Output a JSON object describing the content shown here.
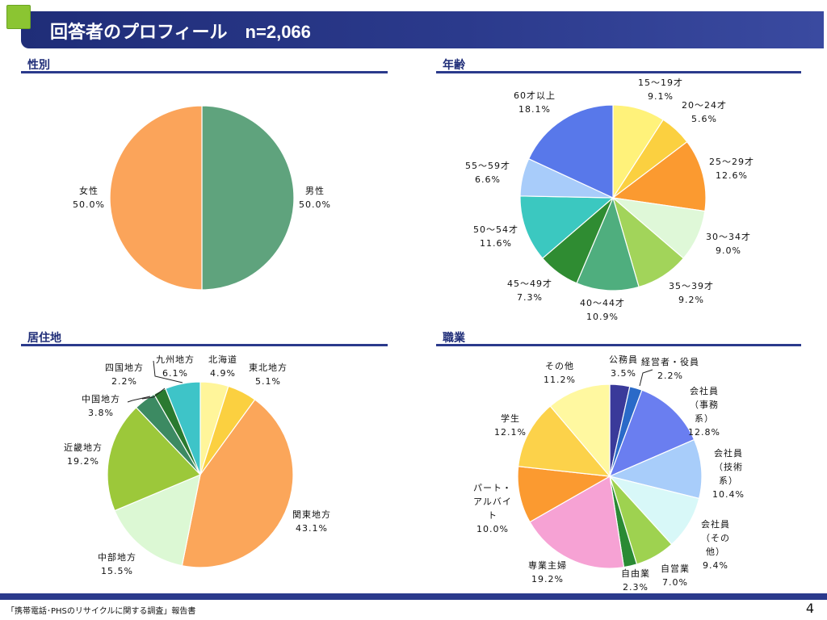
{
  "page": {
    "title": "回答者のプロフィール　n=2,066",
    "footer": "「携帯電話･PHSのリサイクルに関する調査」報告書",
    "page_number": "4"
  },
  "chart_data": [
    {
      "id": "gender",
      "type": "pie",
      "title": "性別",
      "slices": [
        {
          "label": "男性",
          "value": 50.0,
          "display": "50.0%",
          "color": "#5fa37d"
        },
        {
          "label": "女性",
          "value": 50.0,
          "display": "50.0%",
          "color": "#fba45a"
        }
      ]
    },
    {
      "id": "age",
      "type": "pie",
      "title": "年齢",
      "slices": [
        {
          "label": "15～19才",
          "value": 9.1,
          "display": "9.1%",
          "color": "#fff27a"
        },
        {
          "label": "20～24才",
          "value": 5.6,
          "display": "5.6%",
          "color": "#fbd040"
        },
        {
          "label": "25～29才",
          "value": 12.6,
          "display": "12.6%",
          "color": "#fb9a30"
        },
        {
          "label": "30～34才",
          "value": 9.0,
          "display": "9.0%",
          "color": "#dff8d8"
        },
        {
          "label": "35～39才",
          "value": 9.2,
          "display": "9.2%",
          "color": "#a2d45a"
        },
        {
          "label": "40～44才",
          "value": 10.9,
          "display": "10.9%",
          "color": "#4fae7e"
        },
        {
          "label": "45～49才",
          "value": 7.3,
          "display": "7.3%",
          "color": "#2f8c32"
        },
        {
          "label": "50～54才",
          "value": 11.6,
          "display": "11.6%",
          "color": "#3bc8c0"
        },
        {
          "label": "55～59才",
          "value": 6.6,
          "display": "6.6%",
          "color": "#a8ccfa"
        },
        {
          "label": "60才以上",
          "value": 18.1,
          "display": "18.1%",
          "color": "#5878ea"
        }
      ]
    },
    {
      "id": "residence",
      "type": "pie",
      "title": "居住地",
      "slices": [
        {
          "label": "北海道",
          "value": 4.9,
          "display": "4.9%",
          "color": "#fff59a"
        },
        {
          "label": "東北地方",
          "value": 5.1,
          "display": "5.1%",
          "color": "#fbd040"
        },
        {
          "label": "関東地方",
          "value": 43.1,
          "display": "43.1%",
          "color": "#fba65a"
        },
        {
          "label": "中部地方",
          "value": 15.5,
          "display": "15.5%",
          "color": "#dcf8d4"
        },
        {
          "label": "近畿地方",
          "value": 19.2,
          "display": "19.2%",
          "color": "#9cc83a"
        },
        {
          "label": "中国地方",
          "value": 3.8,
          "display": "3.8%",
          "color": "#3c8a62"
        },
        {
          "label": "四国地方",
          "value": 2.2,
          "display": "2.2%",
          "color": "#2a7a30"
        },
        {
          "label": "九州地方",
          "value": 6.1,
          "display": "6.1%",
          "color": "#3ec4c8"
        }
      ]
    },
    {
      "id": "occupation",
      "type": "pie",
      "title": "職業",
      "slices": [
        {
          "label": "公務員",
          "value": 3.5,
          "display": "3.5%",
          "color": "#3a3a9a"
        },
        {
          "label": "経営者・役員",
          "value": 2.2,
          "display": "2.2%",
          "color": "#2a6ac8"
        },
        {
          "label": "会社員（事務系）",
          "value": 12.8,
          "display": "12.8%",
          "color": "#6a7ef0"
        },
        {
          "label": "会社員（技術系）",
          "value": 10.4,
          "display": "10.4%",
          "color": "#a8cdfa"
        },
        {
          "label": "会社員（その他）",
          "value": 9.4,
          "display": "9.4%",
          "color": "#d8f8f8"
        },
        {
          "label": "自営業",
          "value": 7.0,
          "display": "7.0%",
          "color": "#9ed250"
        },
        {
          "label": "自由業",
          "value": 2.3,
          "display": "2.3%",
          "color": "#2a8a34"
        },
        {
          "label": "専業主婦",
          "value": 19.2,
          "display": "19.2%",
          "color": "#f6a2d4"
        },
        {
          "label": "パート・アルバイト",
          "value": 10.0,
          "display": "10.0%",
          "color": "#fb9a30"
        },
        {
          "label": "学生",
          "value": 12.1,
          "display": "12.1%",
          "color": "#fcd24a"
        },
        {
          "label": "その他",
          "value": 11.2,
          "display": "11.2%",
          "color": "#fff8a0"
        }
      ]
    }
  ]
}
